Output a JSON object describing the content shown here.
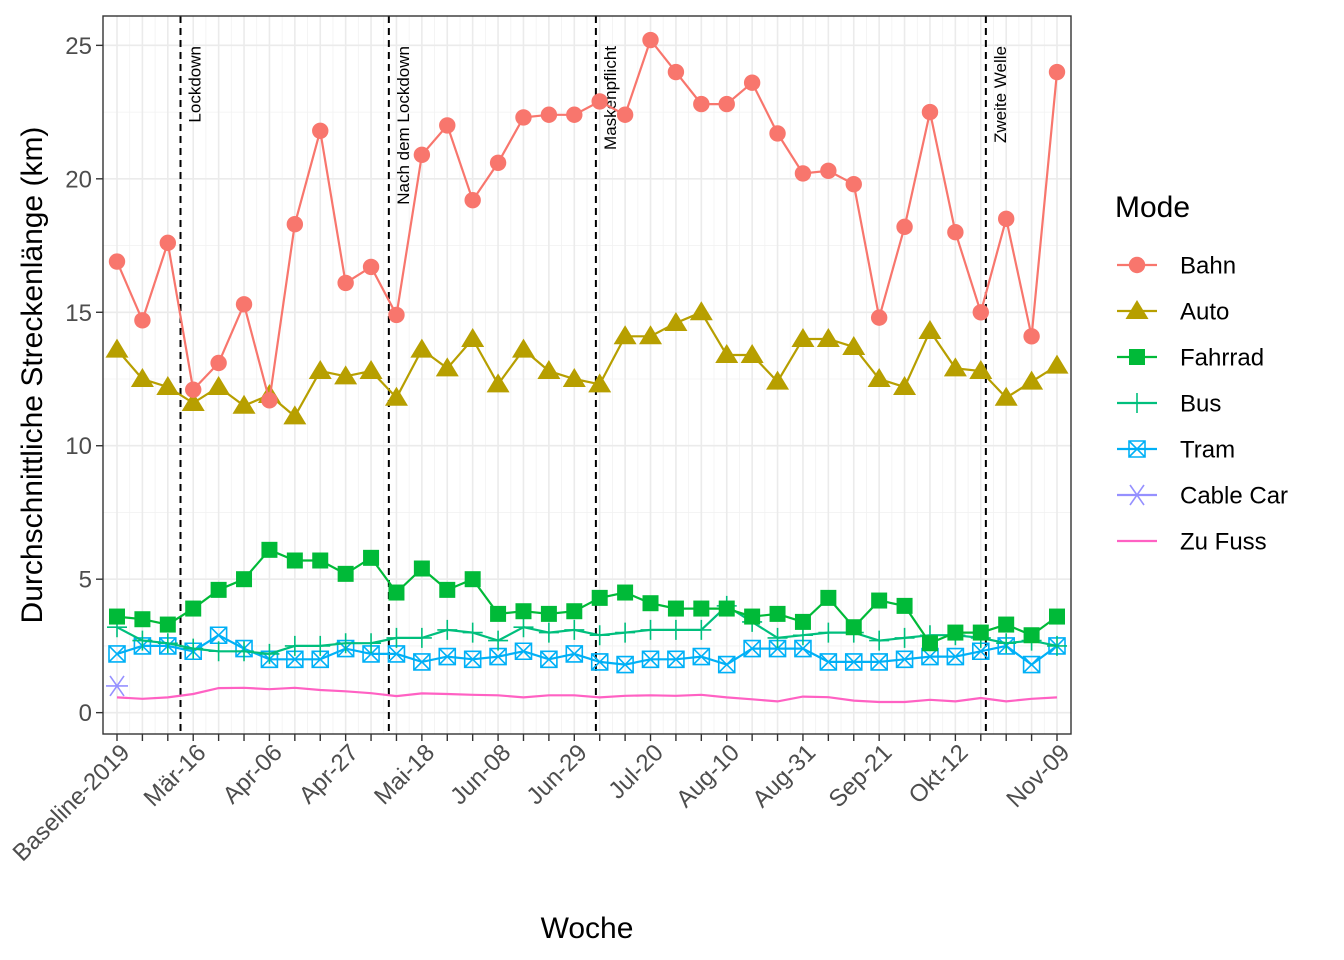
{
  "chart_data": {
    "type": "line",
    "xlabel": "Woche",
    "ylabel": "Durchschnittliche Streckenlänge (km)",
    "ylim": [
      -0.8,
      26.1
    ],
    "yticks": [
      0,
      5,
      10,
      15,
      20,
      25
    ],
    "grid": true,
    "legend_title": "Mode",
    "legend_position": "right",
    "tick_labels": [
      {
        "i": 0,
        "label": "Baseline-2019"
      },
      {
        "i": 3,
        "label": "Mär-16"
      },
      {
        "i": 6,
        "label": "Apr-06"
      },
      {
        "i": 9,
        "label": "Apr-27"
      },
      {
        "i": 12,
        "label": "Mai-18"
      },
      {
        "i": 15,
        "label": "Jun-08"
      },
      {
        "i": 18,
        "label": "Jun-29"
      },
      {
        "i": 21,
        "label": "Jul-20"
      },
      {
        "i": 24,
        "label": "Aug-10"
      },
      {
        "i": 27,
        "label": "Aug-31"
      },
      {
        "i": 30,
        "label": "Sep-21"
      },
      {
        "i": 33,
        "label": "Okt-12"
      },
      {
        "i": 37,
        "label": "Nov-09"
      }
    ],
    "x_count": 38,
    "events": [
      {
        "x": 2.5,
        "label": "Lockdown"
      },
      {
        "x": 10.7,
        "label": "Nach dem Lockdown"
      },
      {
        "x": 18.85,
        "label": "Maskenpflicht"
      },
      {
        "x": 34.2,
        "label": "Zweite Welle"
      }
    ],
    "series": [
      {
        "name": "Bahn",
        "color": "#F8766D",
        "marker": "circle",
        "values": [
          16.9,
          14.7,
          17.6,
          12.1,
          13.1,
          15.3,
          11.7,
          18.3,
          21.8,
          16.1,
          16.7,
          14.9,
          20.9,
          22.0,
          19.2,
          20.6,
          22.3,
          22.4,
          22.4,
          22.9,
          22.4,
          25.2,
          24.0,
          22.8,
          22.8,
          23.6,
          21.7,
          20.2,
          20.3,
          19.8,
          14.8,
          18.2,
          22.5,
          18.0,
          15.0,
          18.5,
          14.1,
          24.0
        ]
      },
      {
        "name": "Auto",
        "color": "#B79F00",
        "marker": "triangle",
        "values": [
          13.6,
          12.5,
          12.2,
          11.6,
          12.2,
          11.5,
          11.9,
          11.1,
          12.8,
          12.6,
          12.8,
          11.8,
          13.6,
          12.9,
          14.0,
          12.3,
          13.6,
          12.8,
          12.5,
          12.3,
          14.1,
          14.1,
          14.6,
          15.0,
          13.4,
          13.4,
          12.4,
          14.0,
          14.0,
          13.7,
          12.5,
          12.2,
          14.3,
          12.9,
          12.8,
          11.8,
          12.4,
          13.0
        ]
      },
      {
        "name": "Fahrrad",
        "color": "#00BA38",
        "marker": "square",
        "values": [
          3.6,
          3.5,
          3.3,
          3.9,
          4.6,
          5.0,
          6.1,
          5.7,
          5.7,
          5.2,
          5.8,
          4.5,
          5.4,
          4.6,
          5.0,
          3.7,
          3.8,
          3.7,
          3.8,
          4.3,
          4.5,
          4.1,
          3.9,
          3.9,
          3.9,
          3.6,
          3.7,
          3.4,
          4.3,
          3.2,
          4.2,
          4.0,
          2.6,
          3.0,
          3.0,
          3.3,
          2.9,
          3.6
        ]
      },
      {
        "name": "Bus",
        "color": "#00BF7D",
        "marker": "plus",
        "values": [
          3.2,
          2.7,
          2.6,
          2.4,
          2.3,
          2.3,
          2.2,
          2.5,
          2.5,
          2.6,
          2.6,
          2.8,
          2.8,
          3.1,
          3.0,
          2.7,
          3.2,
          3.0,
          3.1,
          2.9,
          3.0,
          3.1,
          3.1,
          3.1,
          4.0,
          3.4,
          2.8,
          2.9,
          3.0,
          3.0,
          2.7,
          2.8,
          2.9,
          2.9,
          2.8,
          2.6,
          2.7,
          2.5
        ]
      },
      {
        "name": "Tram",
        "color": "#00B0F6",
        "marker": "boxx",
        "values": [
          2.2,
          2.5,
          2.5,
          2.3,
          2.9,
          2.4,
          2.0,
          2.0,
          2.0,
          2.4,
          2.2,
          2.2,
          1.9,
          2.1,
          2.0,
          2.1,
          2.3,
          2.0,
          2.2,
          1.9,
          1.8,
          2.0,
          2.0,
          2.1,
          1.8,
          2.4,
          2.4,
          2.4,
          1.9,
          1.9,
          1.9,
          2.0,
          2.1,
          2.1,
          2.3,
          2.5,
          1.8,
          2.5
        ]
      },
      {
        "name": "Cable Car",
        "color": "#9590FF",
        "marker": "asterisk",
        "values": [
          1.0
        ]
      },
      {
        "name": "Zu Fuss",
        "color": "#FF61C3",
        "marker": "none",
        "values": [
          0.57,
          0.52,
          0.57,
          0.7,
          0.92,
          0.93,
          0.88,
          0.93,
          0.85,
          0.8,
          0.73,
          0.62,
          0.72,
          0.7,
          0.67,
          0.65,
          0.57,
          0.65,
          0.65,
          0.57,
          0.63,
          0.65,
          0.63,
          0.67,
          0.57,
          0.5,
          0.42,
          0.6,
          0.58,
          0.45,
          0.4,
          0.4,
          0.48,
          0.42,
          0.55,
          0.42,
          0.52,
          0.57
        ]
      }
    ]
  }
}
